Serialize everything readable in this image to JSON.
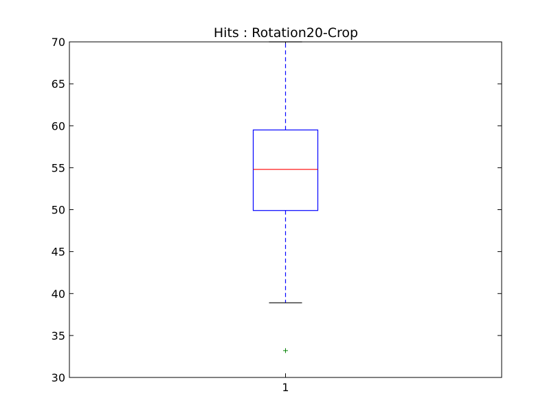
{
  "chart_data": {
    "type": "boxplot",
    "title": "Hits : Rotation20-Crop",
    "xlabel": "",
    "ylabel": "",
    "ylim": [
      30,
      70
    ],
    "yticks": [
      30,
      35,
      40,
      45,
      50,
      55,
      60,
      65,
      70
    ],
    "xticks": [
      "1"
    ],
    "grid": false,
    "series": [
      {
        "category": "1",
        "q1": 49.9,
        "median": 54.8,
        "q3": 59.5,
        "whisker_low": 38.9,
        "whisker_high": 70,
        "outliers": [
          33.2
        ]
      }
    ],
    "colors": {
      "box": "#0000ff",
      "median": "#ff0000",
      "whisker": "#0000ff",
      "cap": "#000000",
      "outlier": "#008000",
      "axes": "#000000"
    }
  }
}
